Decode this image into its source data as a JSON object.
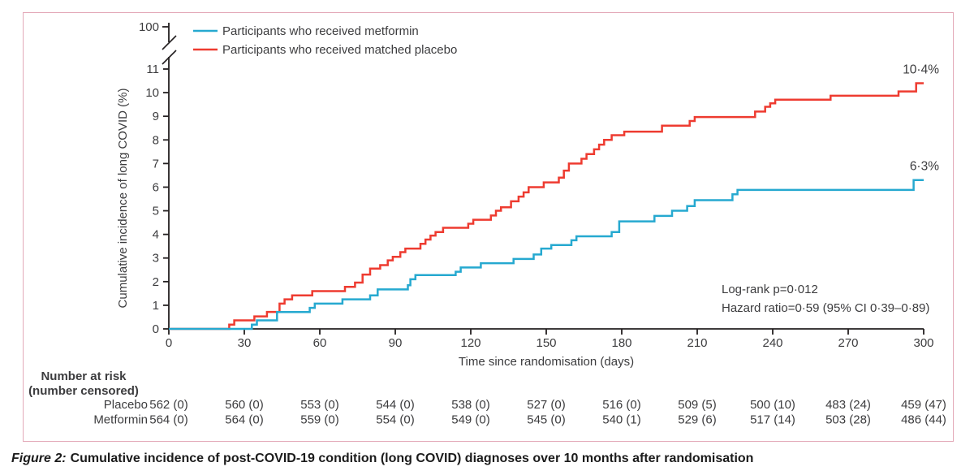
{
  "figure": {
    "border_color": "#e3a9b8",
    "caption_prefix": "Figure 2:",
    "caption_text": "Cumulative incidence of post-COVID-19 condition (long COVID) diagnoses over 10 months after randomisation"
  },
  "chart_data": {
    "type": "line",
    "subtype": "kaplan-meier-cumulative-incidence-step",
    "title": "",
    "xlabel": "Time since randomisation (days)",
    "ylabel": "Cumulative incidence of long COVID (%)",
    "xlim": [
      0,
      300
    ],
    "xticks": [
      0,
      30,
      60,
      90,
      120,
      150,
      180,
      210,
      240,
      270,
      300
    ],
    "ylim": [
      0,
      11
    ],
    "yticks": [
      0,
      1,
      2,
      3,
      4,
      5,
      6,
      7,
      8,
      9,
      10,
      11
    ],
    "y_axis_break_top_label": "100",
    "grid": false,
    "legend_position": "top-left-inside",
    "axis_color": "#231f20",
    "text_color": "#3c3c3e",
    "annotations": {
      "logrank": "Log-rank p=0·012",
      "hazard": "Hazard ratio=0·59 (95% CI 0·39–0·89)"
    },
    "series": [
      {
        "name": "Participants who received metformin",
        "color": "#26a9d0",
        "end_label": "6·3%",
        "points": [
          [
            0,
            0
          ],
          [
            33,
            0.18
          ],
          [
            35,
            0.36
          ],
          [
            43,
            0.71
          ],
          [
            56,
            0.89
          ],
          [
            58,
            1.07
          ],
          [
            69,
            1.25
          ],
          [
            80,
            1.42
          ],
          [
            83,
            1.67
          ],
          [
            95,
            1.85
          ],
          [
            96,
            2.1
          ],
          [
            98,
            2.28
          ],
          [
            114,
            2.42
          ],
          [
            116,
            2.6
          ],
          [
            124,
            2.78
          ],
          [
            137,
            2.96
          ],
          [
            145,
            3.15
          ],
          [
            148,
            3.4
          ],
          [
            152,
            3.55
          ],
          [
            160,
            3.75
          ],
          [
            162,
            3.92
          ],
          [
            176,
            4.1
          ],
          [
            179,
            4.55
          ],
          [
            193,
            4.78
          ],
          [
            200,
            5.0
          ],
          [
            206,
            5.2
          ],
          [
            209,
            5.45
          ],
          [
            224,
            5.7
          ],
          [
            226,
            5.88
          ],
          [
            296,
            6.3
          ],
          [
            300,
            6.3
          ]
        ]
      },
      {
        "name": "Participants who received matched placebo",
        "color": "#ee3b30",
        "end_label": "10·4%",
        "points": [
          [
            0,
            0
          ],
          [
            24,
            0.18
          ],
          [
            26,
            0.36
          ],
          [
            34,
            0.53
          ],
          [
            39,
            0.72
          ],
          [
            44,
            1.07
          ],
          [
            46,
            1.25
          ],
          [
            49,
            1.42
          ],
          [
            57,
            1.6
          ],
          [
            70,
            1.78
          ],
          [
            74,
            1.96
          ],
          [
            77,
            2.3
          ],
          [
            80,
            2.55
          ],
          [
            84,
            2.7
          ],
          [
            87,
            2.9
          ],
          [
            89,
            3.05
          ],
          [
            92,
            3.25
          ],
          [
            94,
            3.4
          ],
          [
            100,
            3.6
          ],
          [
            102,
            3.78
          ],
          [
            104,
            3.95
          ],
          [
            106,
            4.1
          ],
          [
            109,
            4.28
          ],
          [
            119,
            4.45
          ],
          [
            121,
            4.62
          ],
          [
            128,
            4.8
          ],
          [
            130,
            5.0
          ],
          [
            132,
            5.15
          ],
          [
            136,
            5.4
          ],
          [
            139,
            5.6
          ],
          [
            141,
            5.78
          ],
          [
            143,
            6.0
          ],
          [
            149,
            6.2
          ],
          [
            155,
            6.4
          ],
          [
            157,
            6.7
          ],
          [
            159,
            7.0
          ],
          [
            164,
            7.2
          ],
          [
            166,
            7.4
          ],
          [
            169,
            7.6
          ],
          [
            171,
            7.8
          ],
          [
            173,
            8.0
          ],
          [
            176,
            8.2
          ],
          [
            181,
            8.35
          ],
          [
            196,
            8.6
          ],
          [
            207,
            8.8
          ],
          [
            209,
            8.97
          ],
          [
            233,
            9.2
          ],
          [
            237,
            9.4
          ],
          [
            239,
            9.55
          ],
          [
            241,
            9.7
          ],
          [
            263,
            9.87
          ],
          [
            290,
            10.05
          ],
          [
            297,
            10.4
          ],
          [
            300,
            10.4
          ]
        ]
      }
    ],
    "risk_table": {
      "header_line1": "Number at risk",
      "header_line2": "(number censored)",
      "days": [
        0,
        30,
        60,
        90,
        120,
        150,
        180,
        210,
        240,
        270,
        300
      ],
      "rows": [
        {
          "label": "Placebo",
          "values": [
            "562 (0)",
            "560 (0)",
            "553 (0)",
            "544 (0)",
            "538 (0)",
            "527 (0)",
            "516 (0)",
            "509 (5)",
            "500 (10)",
            "483 (24)",
            "459 (47)"
          ]
        },
        {
          "label": "Metformin",
          "values": [
            "564 (0)",
            "564 (0)",
            "559 (0)",
            "554 (0)",
            "549 (0)",
            "545 (0)",
            "540 (1)",
            "529 (6)",
            "517 (14)",
            "503 (28)",
            "486 (44)"
          ]
        }
      ]
    }
  }
}
